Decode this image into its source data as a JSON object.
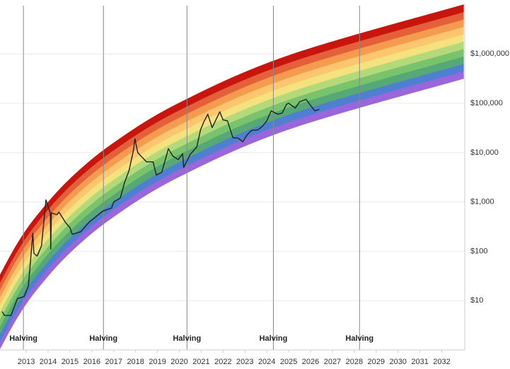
{
  "chart_data": {
    "type": "line",
    "log_y": true,
    "grid": true,
    "xlim": [
      2011.8,
      2033.05
    ],
    "ylim": [
      1,
      10500000
    ],
    "xticks": [
      2013,
      2014,
      2015,
      2016,
      2017,
      2018,
      2019,
      2020,
      2021,
      2022,
      2023,
      2024,
      2025,
      2026,
      2027,
      2028,
      2029,
      2030,
      2031,
      2032
    ],
    "yticks": [
      {
        "value": 10,
        "label": "$10"
      },
      {
        "value": 100,
        "label": "$100"
      },
      {
        "value": 1000,
        "label": "$1,000"
      },
      {
        "value": 10000,
        "label": "$10,000"
      },
      {
        "value": 100000,
        "label": "$100,000"
      },
      {
        "value": 1000000,
        "label": "$1,000,000"
      }
    ],
    "band_x": [
      2011.8,
      2012.6,
      2013.5,
      2015,
      2017,
      2020,
      2025,
      2033
    ],
    "band_edges": [
      [
        1.05,
        4.57,
        17.0,
        93.3,
        501,
        3240,
        29500,
        316000
      ],
      [
        1.48,
        6.46,
        24.0,
        132,
        708,
        4570,
        41700,
        447000
      ],
      [
        2.09,
        9.12,
        33.9,
        186,
        1000,
        6460,
        58900,
        631000
      ],
      [
        2.95,
        12.9,
        47.9,
        263,
        1410,
        9120,
        83200,
        891000
      ],
      [
        4.17,
        18.2,
        67.6,
        372,
        2000,
        12900,
        118000,
        1260000
      ],
      [
        5.89,
        25.7,
        95.5,
        525,
        2820,
        18200,
        166000,
        1780000
      ],
      [
        8.32,
        36.3,
        135,
        741,
        3980,
        25700,
        234000,
        2510000
      ],
      [
        11.7,
        51.3,
        191,
        1050,
        5620,
        36300,
        331000,
        3550000
      ],
      [
        16.6,
        72.4,
        269,
        1480,
        7940,
        51300,
        468000,
        5010000
      ],
      [
        23.4,
        102,
        380,
        2090,
        11200,
        72400,
        661000,
        7080000
      ],
      [
        33.1,
        145,
        537,
        2950,
        15800,
        102000,
        933000,
        10000000
      ]
    ],
    "band_colors": [
      "#9a66dc",
      "#4f7fd0",
      "#56a877",
      "#78c36c",
      "#b4d97a",
      "#f3e27e",
      "#fbc66d",
      "#f49b4e",
      "#e4603a",
      "#c8160e"
    ],
    "series": [
      {
        "color": "#222222",
        "x": [
          2011.9,
          2012.0,
          2012.3,
          2012.6,
          2012.9,
          2013.1,
          2013.3,
          2013.35,
          2013.5,
          2013.7,
          2013.9,
          2014.0,
          2014.1,
          2014.12,
          2014.15,
          2014.4,
          2014.5,
          2014.8,
          2015.0,
          2015.1,
          2015.5,
          2015.9,
          2016.0,
          2016.5,
          2016.9,
          2017.0,
          2017.3,
          2017.5,
          2017.7,
          2017.9,
          2017.97,
          2018.1,
          2018.3,
          2018.5,
          2018.8,
          2018.95,
          2019.2,
          2019.5,
          2019.7,
          2019.95,
          2020.15,
          2020.2,
          2020.5,
          2020.8,
          2020.97,
          2021.1,
          2021.3,
          2021.5,
          2021.85,
          2022.0,
          2022.2,
          2022.45,
          2022.7,
          2022.9,
          2023.1,
          2023.3,
          2023.6,
          2023.8,
          2024.0,
          2024.2,
          2024.5,
          2024.7,
          2024.9,
          2025.0,
          2025.3,
          2025.5,
          2025.8,
          2026.0,
          2026.2,
          2026.4
        ],
        "values": [
          6,
          5,
          5,
          11,
          12,
          20,
          230,
          90,
          80,
          130,
          1100,
          800,
          600,
          110,
          600,
          550,
          620,
          380,
          300,
          220,
          250,
          400,
          430,
          650,
          750,
          1000,
          1200,
          2500,
          4300,
          11000,
          19000,
          10000,
          8000,
          6500,
          6500,
          3500,
          4000,
          12000,
          8500,
          7200,
          9500,
          5000,
          9200,
          13000,
          29000,
          40000,
          60000,
          32000,
          67000,
          46000,
          44000,
          20000,
          19500,
          16500,
          23000,
          28000,
          29000,
          34000,
          44000,
          70000,
          60000,
          63000,
          95000,
          100000,
          80000,
          107000,
          120000,
          90000,
          70000,
          75000
        ]
      }
    ],
    "halvings": [
      {
        "x": 2012.87,
        "label": "Halving"
      },
      {
        "x": 2016.53,
        "label": "Halving"
      },
      {
        "x": 2020.35,
        "label": "Halving"
      },
      {
        "x": 2024.3,
        "label": "Halving"
      },
      {
        "x": 2028.24,
        "label": "Halving"
      }
    ]
  }
}
